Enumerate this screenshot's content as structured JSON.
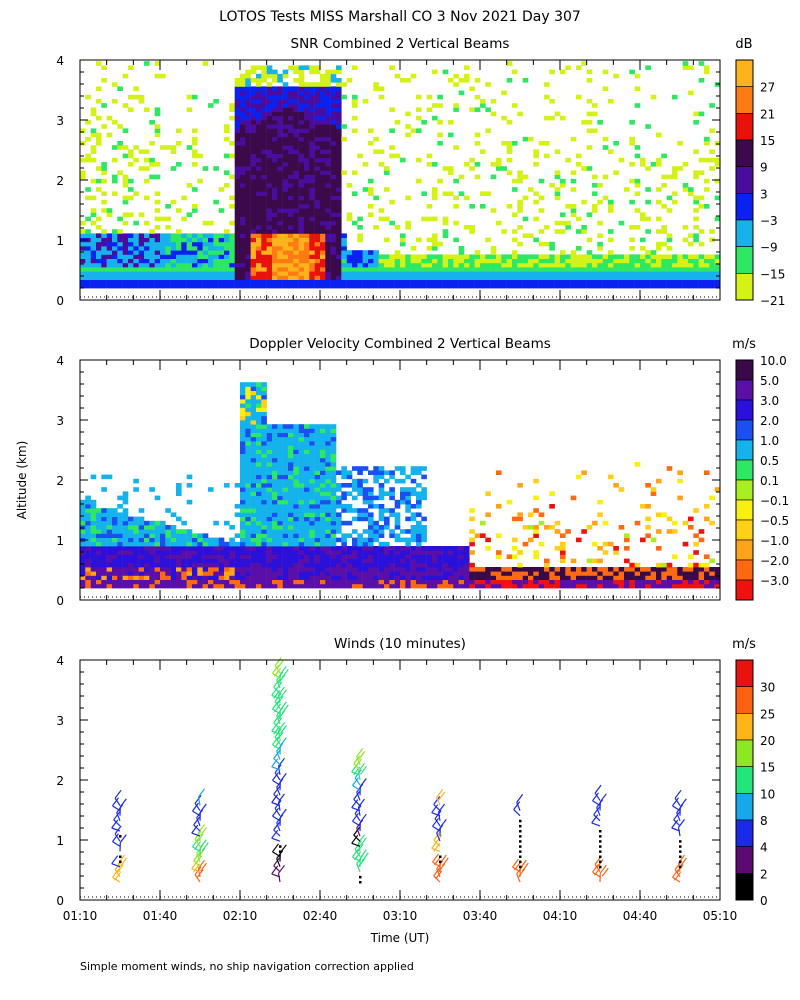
{
  "title": "LOTOS Tests MISS Marshall CO   3 Nov 2021 Day 307",
  "ylabel": "Altitude (km)",
  "xlabel": "Time (UT)",
  "footnote": "Simple moment winds, no ship navigation correction applied",
  "chart_data": [
    {
      "type": "heatmap",
      "title": "SNR Combined 2 Vertical Beams",
      "xlabel": "Time (UT)",
      "ylabel": "Altitude (km)",
      "xlim": [
        "01:10",
        "05:10"
      ],
      "ylim": [
        0,
        4
      ],
      "yticks": [
        "0",
        "1",
        "2",
        "3",
        "4"
      ],
      "colorbar": {
        "unit": "dB",
        "levels": [
          -21,
          -15,
          -9,
          -3,
          3,
          9,
          15,
          21,
          27
        ],
        "labels": [
          "−21",
          "−15",
          "−9",
          "−3",
          "3",
          "9",
          "15",
          "21",
          "27"
        ],
        "colors": [
          "#d4f217",
          "#2ee864",
          "#15b2ec",
          "#0a22f0",
          "#4a0c9e",
          "#3c0a4a",
          "#e8120c",
          "#ff7a12",
          "#ffb21a"
        ]
      },
      "regions": [
        {
          "t": [
            "01:10",
            "05:10"
          ],
          "alt": [
            0.2,
            0.35
          ],
          "snr": -3
        },
        {
          "t": [
            "01:10",
            "02:40"
          ],
          "alt": [
            0.35,
            1.0
          ],
          "snr": -9
        },
        {
          "t": [
            "02:10",
            "02:40"
          ],
          "alt": [
            0.3,
            3.3
          ],
          "snr": 9
        },
        {
          "t": [
            "02:15",
            "02:32"
          ],
          "alt": [
            0.3,
            1.2
          ],
          "snr": 21
        },
        {
          "t": [
            "01:10",
            "05:10"
          ],
          "alt": [
            1.0,
            3.9
          ],
          "snr": -21
        }
      ]
    },
    {
      "type": "heatmap",
      "title": "Doppler Velocity Combined 2 Vertical Beams",
      "xlabel": "Time (UT)",
      "ylabel": "Altitude (km)",
      "xlim": [
        "01:10",
        "05:10"
      ],
      "ylim": [
        0,
        4
      ],
      "yticks": [
        "0",
        "1",
        "2",
        "3",
        "4"
      ],
      "colorbar": {
        "unit": "m/s",
        "levels": [
          10.0,
          5.0,
          3.0,
          2.0,
          1.0,
          0.5,
          0.1,
          -0.1,
          -0.5,
          -1.0,
          -2.0,
          -3.0
        ],
        "labels": [
          "10.0",
          "5.0",
          "3.0",
          "2.0",
          "1.0",
          "0.5",
          "0.1",
          "−0.1",
          "−0.5",
          "−1.0",
          "−2.0",
          "−3.0"
        ],
        "colors": [
          "#3a0a48",
          "#5a10a8",
          "#2a10d8",
          "#1a50f0",
          "#15b2ec",
          "#2ee864",
          "#a8ee20",
          "#f8f010",
          "#ffd018",
          "#ffa418",
          "#ff6a10",
          "#f01010"
        ]
      },
      "regions": [
        {
          "t": [
            "01:10",
            "03:35"
          ],
          "alt": [
            0.2,
            0.9
          ],
          "w": 3.0
        },
        {
          "t": [
            "02:08",
            "02:45"
          ],
          "alt": [
            0.9,
            3.8
          ],
          "w": 1.0
        },
        {
          "t": [
            "03:20",
            "05:10"
          ],
          "alt": [
            0.2,
            1.6
          ],
          "w": -1.0
        }
      ]
    },
    {
      "type": "scatter",
      "title": "Winds (10 minutes)",
      "xlabel": "Time (UT)",
      "ylabel": "Altitude (km)",
      "xlim": [
        "01:10",
        "05:10"
      ],
      "ylim": [
        0,
        4
      ],
      "yticks": [
        "0",
        "1",
        "2",
        "3",
        "4"
      ],
      "xticks": [
        "01:10",
        "01:40",
        "02:10",
        "02:40",
        "03:10",
        "03:40",
        "04:10",
        "04:40",
        "05:10"
      ],
      "colorbar": {
        "unit": "m/s",
        "levels": [
          0,
          2,
          4,
          8,
          10,
          15,
          20,
          25,
          30
        ],
        "labels": [
          "0",
          "2",
          "4",
          "8",
          "10",
          "15",
          "20",
          "25",
          "30"
        ],
        "colors": [
          "#000000",
          "#5a0a70",
          "#1a2ae8",
          "#15a8ea",
          "#22e67a",
          "#8ee820",
          "#ffb418",
          "#ff6012",
          "#e8120e"
        ]
      },
      "profiles": [
        {
          "time": "01:25",
          "speeds": [
            22,
            22,
            22,
            4,
            0,
            0,
            4,
            4,
            4,
            0,
            4,
            4,
            4,
            6,
            4,
            4
          ]
        },
        {
          "time": "01:55",
          "speeds": [
            25,
            25,
            22,
            16,
            16,
            14,
            14,
            16,
            16,
            4,
            4,
            6,
            6,
            4,
            4,
            8
          ]
        },
        {
          "time": "02:25",
          "speeds": [
            2,
            2,
            2,
            1,
            1,
            1,
            0,
            0,
            4,
            4,
            6,
            6,
            6,
            4,
            4,
            4,
            6,
            6,
            6,
            6,
            6,
            6,
            8,
            8,
            8,
            8,
            10,
            10,
            10,
            10,
            10,
            10,
            10,
            12,
            12,
            12,
            12,
            12,
            14,
            14,
            16,
            16
          ]
        },
        {
          "time": "02:55",
          "speeds": [
            0,
            0,
            12,
            12,
            12,
            12,
            12,
            1,
            1,
            2,
            4,
            4,
            6,
            6,
            6,
            4,
            4,
            6,
            8,
            8,
            10,
            14,
            16,
            16
          ]
        },
        {
          "time": "03:25",
          "speeds": [
            25,
            25,
            25,
            25,
            0,
            0,
            20,
            20,
            4,
            4,
            4,
            6,
            6,
            4,
            4,
            22
          ]
        },
        {
          "time": "03:55",
          "speeds": [
            25,
            25,
            25,
            0,
            0,
            0,
            0,
            0,
            0,
            0,
            0,
            0,
            0,
            4,
            4
          ]
        },
        {
          "time": "04:25",
          "speeds": [
            25,
            25,
            25,
            0,
            0,
            0,
            0,
            0,
            0,
            0,
            0,
            4,
            4,
            4,
            4,
            4,
            4
          ]
        },
        {
          "time": "04:55",
          "speeds": [
            25,
            25,
            25,
            0,
            0,
            0,
            0,
            0,
            0,
            4,
            4,
            4,
            4,
            4,
            4,
            4
          ]
        }
      ]
    }
  ]
}
